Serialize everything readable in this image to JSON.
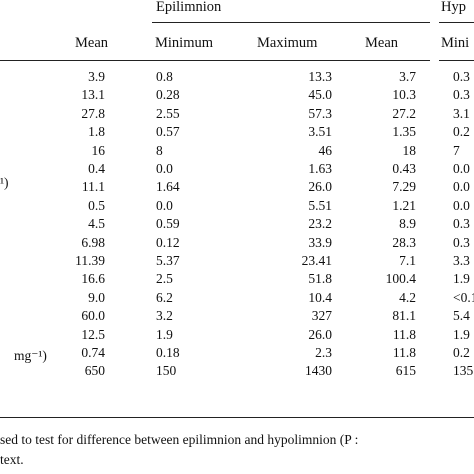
{
  "header": {
    "group_epilimnion": "Epilimnion",
    "group_hypolimnion": "Hyp",
    "col_mean_left": "Mean",
    "col_minimum": "Minimum",
    "col_maximum": "Maximum",
    "col_mean": "Mean",
    "col_mini_cut": "Mini"
  },
  "row_label_fragments": {
    "row6_label": "¹)",
    "row16_label": "mg⁻¹)"
  },
  "rows": [
    {
      "mean0": "3.9",
      "min": "0.8",
      "max": "13.3",
      "mean": "3.7",
      "hmin": "0.3"
    },
    {
      "mean0": "13.1",
      "min": "0.28",
      "max": "45.0",
      "mean": "10.3",
      "hmin": "0.3"
    },
    {
      "mean0": "27.8",
      "min": "2.55",
      "max": "57.3",
      "mean": "27.2",
      "hmin": "3.1"
    },
    {
      "mean0": "1.8",
      "min": "0.57",
      "max": "3.51",
      "mean": "1.35",
      "hmin": "0.2"
    },
    {
      "mean0": "16",
      "min": "8",
      "max": "46",
      "mean": "18",
      "hmin": "7"
    },
    {
      "mean0": "0.4",
      "min": "0.0",
      "max": "1.63",
      "mean": "0.43",
      "hmin": "0.0"
    },
    {
      "mean0": "11.1",
      "min": "1.64",
      "max": "26.0",
      "mean": "7.29",
      "hmin": "0.0"
    },
    {
      "mean0": "0.5",
      "min": "0.0",
      "max": "5.51",
      "mean": "1.21",
      "hmin": "0.0"
    },
    {
      "mean0": "4.5",
      "min": "0.59",
      "max": "23.2",
      "mean": "8.9",
      "hmin": "0.3"
    },
    {
      "mean0": "6.98",
      "min": "0.12",
      "max": "33.9",
      "mean": "28.3",
      "hmin": "0.3"
    },
    {
      "mean0": "11.39",
      "min": "5.37",
      "max": "23.41",
      "mean": "7.1",
      "hmin": "3.3"
    },
    {
      "mean0": "16.6",
      "min": "2.5",
      "max": "51.8",
      "mean": "100.4",
      "hmin": "1.9"
    },
    {
      "mean0": "9.0",
      "min": "6.2",
      "max": "10.4",
      "mean": "4.2",
      "hmin": "<0.1"
    },
    {
      "mean0": "60.0",
      "min": "3.2",
      "max": "327",
      "mean": "81.1",
      "hmin": "5.4"
    },
    {
      "mean0": "12.5",
      "min": "1.9",
      "max": "26.0",
      "mean": "11.8",
      "hmin": "1.9"
    },
    {
      "mean0": "0.74",
      "min": "0.18",
      "max": "2.3",
      "mean": "11.8",
      "hmin": "0.2"
    },
    {
      "mean0": "650",
      "min": "150",
      "max": "1430",
      "mean": "615",
      "hmin": "135"
    }
  ],
  "footnote": {
    "line1": "sed to test for difference between epilimnion and hypolimnion (P :",
    "line2": "text."
  }
}
